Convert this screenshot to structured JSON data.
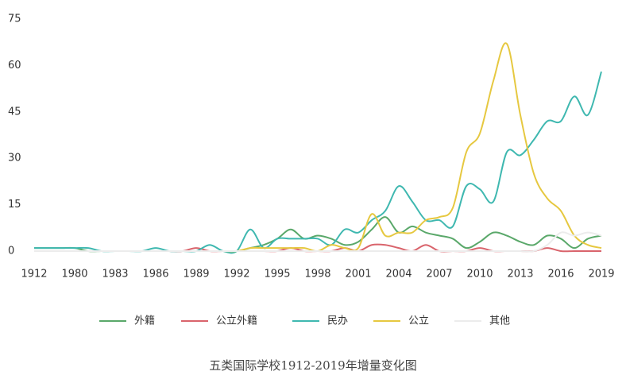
{
  "chart_data": {
    "type": "line",
    "caption": "五类国际学校1912-2019年增量变化图",
    "categories": [
      "1912",
      null,
      null,
      "1980",
      null,
      null,
      "1983",
      null,
      null,
      "1986",
      null,
      null,
      "1989",
      null,
      null,
      "1992",
      null,
      null,
      "1995",
      null,
      null,
      "1998",
      null,
      null,
      "2001",
      null,
      null,
      "2004",
      null,
      null,
      "2007",
      null,
      null,
      "2010",
      null,
      null,
      "2013",
      null,
      null,
      "2016",
      null,
      null,
      "2019"
    ],
    "ylim": [
      0,
      75
    ],
    "yticks": [
      0,
      15,
      30,
      45,
      60,
      75
    ],
    "series": [
      {
        "name": "外籍",
        "color": "#5aa86a",
        "values": [
          1,
          1,
          1,
          1,
          0,
          0,
          0,
          0,
          0,
          0,
          0,
          0,
          0,
          0,
          0,
          0,
          1,
          2,
          4,
          7,
          4,
          5,
          4,
          2,
          3,
          7,
          11,
          6,
          8,
          6,
          5,
          4,
          1,
          3,
          6,
          5,
          3,
          2,
          5,
          4,
          1,
          4,
          5
        ]
      },
      {
        "name": "公立外籍",
        "color": "#d9646c",
        "values": [
          0,
          0,
          0,
          0,
          0,
          0,
          0,
          0,
          0,
          0,
          0,
          0,
          1,
          0,
          0,
          0,
          0,
          0,
          0,
          1,
          0,
          0,
          0,
          1,
          0,
          2,
          2,
          1,
          0,
          2,
          0,
          0,
          0,
          1,
          0,
          0,
          0,
          0,
          1,
          0,
          0,
          0,
          0
        ]
      },
      {
        "name": "民办",
        "color": "#3fb8b0",
        "values": [
          1,
          1,
          1,
          1,
          1,
          0,
          0,
          0,
          0,
          1,
          0,
          0,
          0,
          2,
          0,
          0,
          7,
          1,
          4,
          4,
          4,
          4,
          2,
          7,
          6,
          10,
          13,
          21,
          16,
          10,
          10,
          8,
          21,
          20,
          16,
          32,
          31,
          36,
          42,
          42,
          50,
          44,
          58
        ]
      },
      {
        "name": "公立",
        "color": "#e6c840",
        "values": [
          0,
          0,
          0,
          0,
          0,
          0,
          0,
          0,
          0,
          0,
          0,
          0,
          0,
          0,
          0,
          0,
          1,
          1,
          1,
          1,
          1,
          0,
          2,
          1,
          1,
          12,
          5,
          6,
          6,
          10,
          11,
          14,
          32,
          38,
          55,
          67,
          44,
          25,
          17,
          13,
          5,
          2,
          1
        ]
      },
      {
        "name": "其他",
        "color": "#ececec",
        "values": [
          0,
          0,
          0,
          0,
          0,
          0,
          0,
          0,
          0,
          0,
          0,
          0,
          0,
          0,
          0,
          0,
          0,
          0,
          0,
          0,
          0,
          0,
          0,
          0,
          0,
          0,
          0,
          0,
          0,
          0,
          0,
          0,
          0,
          0,
          0,
          0,
          0,
          0,
          2,
          6,
          5,
          6,
          5
        ]
      }
    ]
  }
}
